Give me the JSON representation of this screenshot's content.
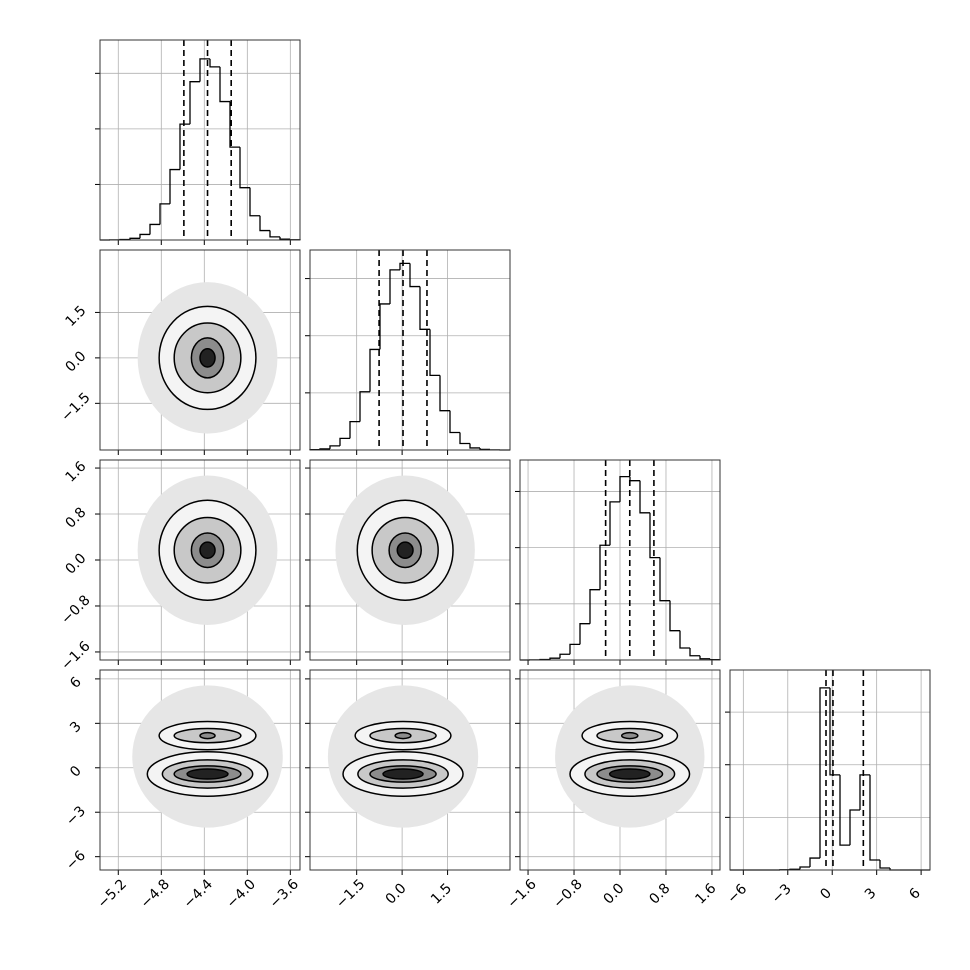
{
  "chart_data": {
    "type": "corner",
    "grid": true,
    "grid_color": "#b0b0b0",
    "hist_color": "#000000",
    "contour_colors": [
      "#e6e6e6",
      "#f4f4f4",
      "#c8c8c8",
      "#8c8c8c",
      "#222222"
    ],
    "parameters": [
      {
        "lim": [
          -5.37,
          -3.51
        ],
        "ticks": [
          {
            "value": -5.2,
            "label": "−5.2"
          },
          {
            "value": -4.8,
            "label": "−4.8"
          },
          {
            "value": -4.4,
            "label": "−4.4"
          },
          {
            "value": -4,
            "label": "−4.0"
          },
          {
            "value": -3.6,
            "label": "−3.6"
          }
        ],
        "bins": [
          -5.37,
          -5.277,
          -5.184,
          -5.091,
          -4.998,
          -4.905,
          -4.812,
          -4.719,
          -4.626,
          -4.533,
          -4.44,
          -4.347,
          -4.254,
          -4.161,
          -4.068,
          -3.975,
          -3.882,
          -3.789,
          -3.696,
          -3.603,
          -3.51
        ],
        "counts": [
          0,
          1,
          4,
          15,
          50,
          140,
          325,
          634,
          1043,
          1425,
          1630,
          1558,
          1246,
          836,
          471,
          218,
          85,
          28,
          8,
          2
        ],
        "hist_ylim": [
          0,
          1800
        ],
        "hist_yticks": [
          500,
          1000,
          1500
        ],
        "quantiles": [
          -4.59,
          -4.37,
          -4.15
        ]
      },
      {
        "lim": [
          -3.04,
          3.56
        ],
        "ticks": [
          {
            "value": -1.5,
            "label": "−1.5"
          },
          {
            "value": 0,
            "label": "0.0"
          },
          1.5
        ],
        "bins": [
          -3.04,
          -2.71,
          -2.38,
          -2.05,
          -1.72,
          -1.39,
          -1.06,
          -0.73,
          -0.4,
          -0.07,
          0.26,
          0.59,
          0.92,
          1.25,
          1.58,
          1.91,
          2.24,
          2.57,
          2.9,
          3.23,
          3.56
        ],
        "counts": [
          3,
          10,
          36,
          102,
          248,
          510,
          880,
          1278,
          1576,
          1633,
          1430,
          1056,
          653,
          344,
          153,
          57,
          18,
          5,
          1,
          0
        ],
        "hist_ylim": [
          0,
          1750
        ],
        "hist_yticks": [
          500,
          1000,
          1500
        ],
        "quantiles": [
          -0.76,
          0.03,
          0.82
        ]
      },
      {
        "lim": [
          -1.74,
          1.74
        ],
        "ticks": [
          {
            "value": -1.6,
            "label": "−1.6"
          },
          {
            "value": -0.8,
            "label": "−0.8"
          },
          {
            "value": 0,
            "label": "0.0"
          },
          0.8,
          1.6
        ],
        "bins": [
          -1.74,
          -1.566,
          -1.392,
          -1.218,
          -1.044,
          -0.87,
          -0.696,
          -0.522,
          -0.348,
          -0.174,
          0,
          0.174,
          0.348,
          0.522,
          0.696,
          0.87,
          1.044,
          1.218,
          1.392,
          1.566,
          1.74
        ],
        "counts": [
          0,
          1,
          4,
          16,
          51,
          139,
          323,
          626,
          1021,
          1407,
          1632,
          1596,
          1310,
          911,
          528,
          261,
          107,
          38,
          11,
          3
        ],
        "hist_ylim": [
          0,
          1780
        ],
        "hist_yticks": [
          500,
          1000,
          1500
        ],
        "quantiles": [
          -0.25,
          0.17,
          0.59
        ]
      },
      {
        "lim": [
          -6.9,
          6.6
        ],
        "ticks": [
          {
            "value": -6,
            "label": "−6"
          },
          {
            "value": -3,
            "label": "−3"
          },
          0,
          3,
          6
        ],
        "bins": [
          -6.9,
          -6.225,
          -5.55,
          -4.875,
          -4.2,
          -3.525,
          -2.85,
          -2.175,
          -1.5,
          -0.825,
          -0.15,
          0.525,
          1.2,
          1.875,
          2.55,
          3.225,
          3.9,
          4.575,
          5.25,
          5.925,
          6.6
        ],
        "counts": [
          0,
          0,
          0,
          0,
          0,
          5,
          20,
          85,
          340,
          5190,
          2710,
          710,
          1710,
          2710,
          285,
          57,
          0,
          0,
          0,
          0
        ],
        "hist_ylim": [
          0,
          5700
        ],
        "hist_yticks": [
          1500,
          3000,
          4500
        ],
        "quantiles": [
          -0.42,
          0.05,
          2.1
        ]
      }
    ],
    "pairs": [
      [
        {
          "contours": [
            {
              "x": -4.37,
              "y": 0,
              "rx": 0.65,
              "ry": 2.5,
              "level": 0
            },
            {
              "x": -4.37,
              "y": 0,
              "rx": 0.45,
              "ry": 1.7,
              "level": 1
            },
            {
              "x": -4.37,
              "y": 0,
              "rx": 0.31,
              "ry": 1.15,
              "level": 2
            },
            {
              "x": -4.37,
              "y": 0,
              "rx": 0.15,
              "ry": 0.66,
              "level": 3
            },
            {
              "x": -4.37,
              "y": 0,
              "rx": 0.07,
              "ry": 0.3,
              "level": 4
            }
          ]
        }
      ],
      [
        {
          "contours": [
            {
              "x": -4.37,
              "y": 0.17,
              "rx": 0.65,
              "ry": 1.3,
              "level": 0
            },
            {
              "x": -4.37,
              "y": 0.17,
              "rx": 0.45,
              "ry": 0.87,
              "level": 1
            },
            {
              "x": -4.37,
              "y": 0.17,
              "rx": 0.31,
              "ry": 0.57,
              "level": 2
            },
            {
              "x": -4.37,
              "y": 0.17,
              "rx": 0.15,
              "ry": 0.3,
              "level": 3
            },
            {
              "x": -4.37,
              "y": 0.17,
              "rx": 0.07,
              "ry": 0.14,
              "level": 4
            }
          ]
        },
        {
          "contours": [
            {
              "x": 0.1,
              "y": 0.17,
              "rx": 2.3,
              "ry": 1.3,
              "level": 0
            },
            {
              "x": 0.1,
              "y": 0.17,
              "rx": 1.58,
              "ry": 0.87,
              "level": 1
            },
            {
              "x": 0.1,
              "y": 0.17,
              "rx": 1.09,
              "ry": 0.57,
              "level": 2
            },
            {
              "x": 0.1,
              "y": 0.17,
              "rx": 0.53,
              "ry": 0.3,
              "level": 3
            },
            {
              "x": 0.1,
              "y": 0.17,
              "rx": 0.26,
              "ry": 0.14,
              "level": 4
            }
          ]
        }
      ],
      [
        {
          "contours": [
            {
              "x": -4.37,
              "y": 0.76,
              "rx": 0.7,
              "ry": 4.8,
              "level": 0
            },
            {
              "x": -4.37,
              "y": -0.42,
              "rx": 0.56,
              "ry": 1.5,
              "level": 1
            },
            {
              "x": -4.37,
              "y": 2.17,
              "rx": 0.45,
              "ry": 0.95,
              "level": 1
            },
            {
              "x": -4.37,
              "y": -0.42,
              "rx": 0.42,
              "ry": 0.95,
              "level": 2
            },
            {
              "x": -4.37,
              "y": 2.17,
              "rx": 0.31,
              "ry": 0.48,
              "level": 2
            },
            {
              "x": -4.37,
              "y": -0.42,
              "rx": 0.31,
              "ry": 0.55,
              "level": 3
            },
            {
              "x": -4.37,
              "y": 2.17,
              "rx": 0.07,
              "ry": 0.2,
              "level": 3
            },
            {
              "x": -4.37,
              "y": -0.42,
              "rx": 0.19,
              "ry": 0.34,
              "level": 4
            }
          ]
        },
        {
          "contours": [
            {
              "x": 0.03,
              "y": 0.76,
              "rx": 2.48,
              "ry": 4.8,
              "level": 0
            },
            {
              "x": 0.03,
              "y": -0.42,
              "rx": 1.98,
              "ry": 1.5,
              "level": 1
            },
            {
              "x": 0.03,
              "y": 2.17,
              "rx": 1.58,
              "ry": 0.95,
              "level": 1
            },
            {
              "x": 0.03,
              "y": -0.42,
              "rx": 1.49,
              "ry": 0.95,
              "level": 2
            },
            {
              "x": 0.03,
              "y": 2.17,
              "rx": 1.09,
              "ry": 0.48,
              "level": 2
            },
            {
              "x": 0.03,
              "y": -0.42,
              "rx": 1.09,
              "ry": 0.55,
              "level": 3
            },
            {
              "x": 0.03,
              "y": 2.17,
              "rx": 0.26,
              "ry": 0.2,
              "level": 3
            },
            {
              "x": 0.03,
              "y": -0.42,
              "rx": 0.66,
              "ry": 0.34,
              "level": 4
            }
          ]
        },
        {
          "contours": [
            {
              "x": 0.17,
              "y": 0.76,
              "rx": 1.3,
              "ry": 4.8,
              "level": 0
            },
            {
              "x": 0.17,
              "y": -0.42,
              "rx": 1.04,
              "ry": 1.5,
              "level": 1
            },
            {
              "x": 0.17,
              "y": 2.17,
              "rx": 0.83,
              "ry": 0.95,
              "level": 1
            },
            {
              "x": 0.17,
              "y": -0.42,
              "rx": 0.78,
              "ry": 0.95,
              "level": 2
            },
            {
              "x": 0.17,
              "y": 2.17,
              "rx": 0.57,
              "ry": 0.48,
              "level": 2
            },
            {
              "x": 0.17,
              "y": -0.42,
              "rx": 0.57,
              "ry": 0.55,
              "level": 3
            },
            {
              "x": 0.17,
              "y": 2.17,
              "rx": 0.14,
              "ry": 0.2,
              "level": 3
            },
            {
              "x": 0.17,
              "y": -0.42,
              "rx": 0.35,
              "ry": 0.34,
              "level": 4
            }
          ]
        }
      ]
    ]
  }
}
